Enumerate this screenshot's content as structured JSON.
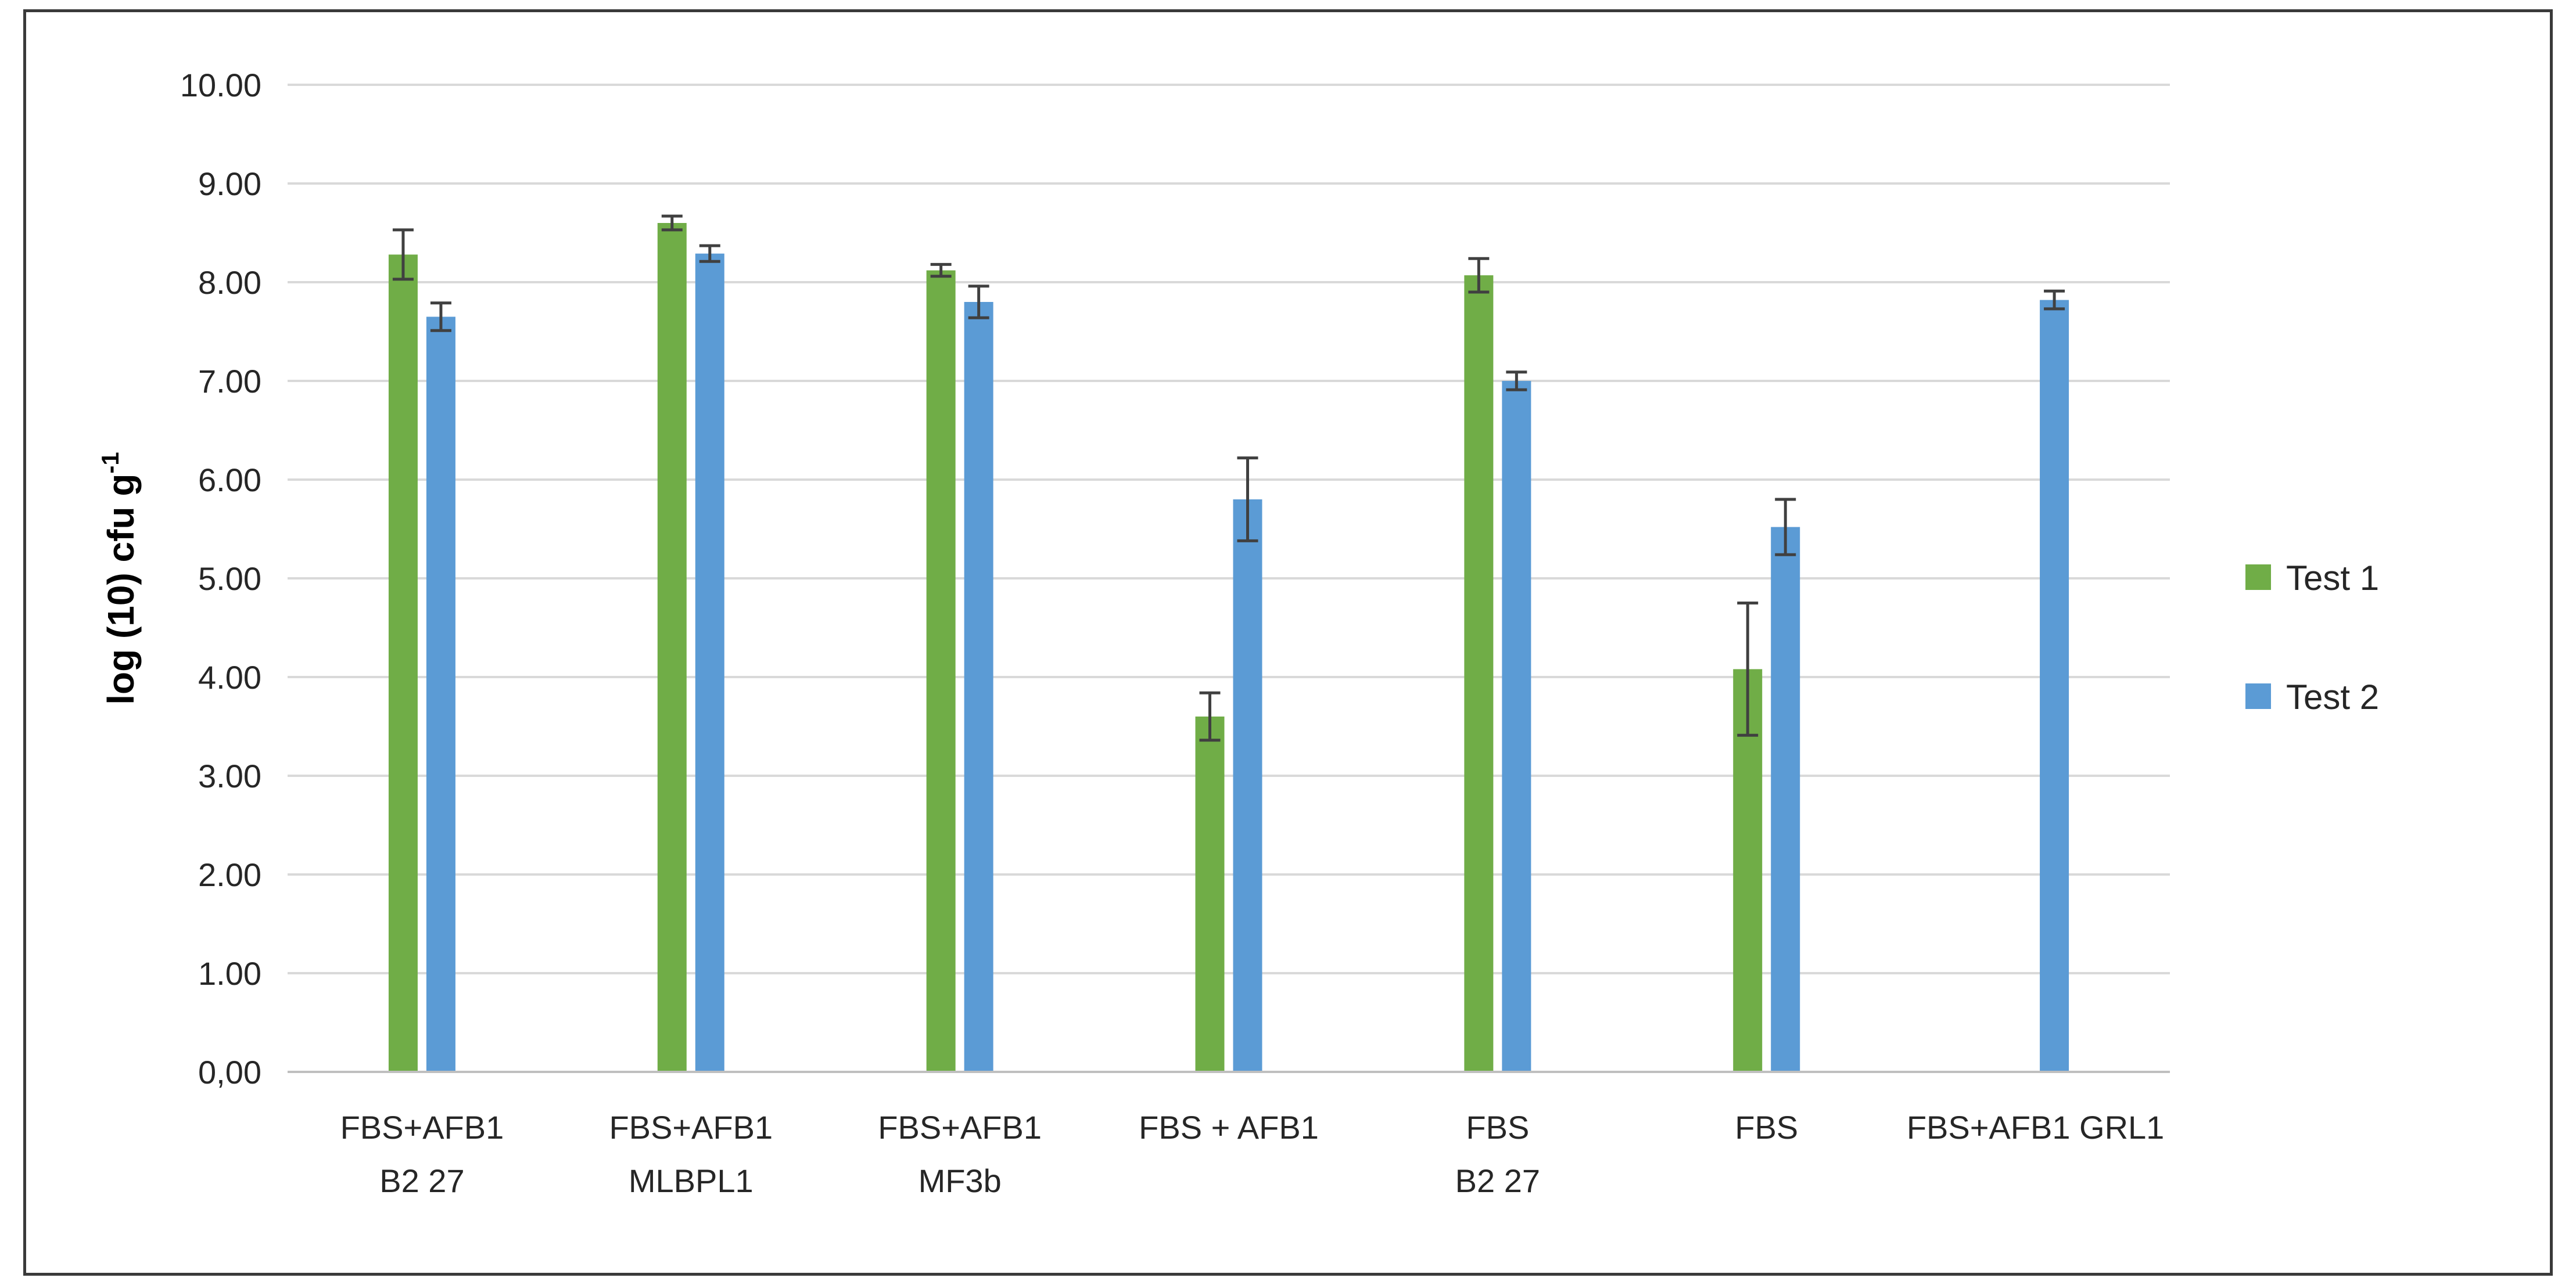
{
  "chart_data": {
    "type": "bar",
    "title": "",
    "xlabel": "",
    "ylabel": {
      "main": "log (10) cfu g",
      "superscript": "-1"
    },
    "ylim": [
      0,
      10
    ],
    "ytick_step": 1,
    "ytick_labels": [
      "0,00",
      "1.00",
      "2.00",
      "3.00",
      "4.00",
      "5.00",
      "6.00",
      "7.00",
      "8.00",
      "9.00",
      "10.00"
    ],
    "grid": true,
    "legend_position": "right",
    "categories": [
      [
        "FBS+AFB1",
        "B2 27"
      ],
      [
        "FBS+AFB1",
        "MLBPL1"
      ],
      [
        "FBS+AFB1",
        "MF3b"
      ],
      [
        "FBS + AFB1"
      ],
      [
        "FBS",
        "B2 27"
      ],
      [
        "FBS"
      ],
      [
        "FBS+AFB1 GRL1"
      ]
    ],
    "series": [
      {
        "name": "Test 1",
        "color": "#70ad47",
        "values": [
          8.28,
          8.6,
          8.12,
          3.6,
          8.07,
          4.08,
          null
        ],
        "errors": [
          0.25,
          0.07,
          0.06,
          0.24,
          0.17,
          0.67,
          null
        ]
      },
      {
        "name": "Test 2",
        "color": "#5b9bd5",
        "values": [
          7.65,
          8.29,
          7.8,
          5.8,
          7.0,
          5.52,
          7.82
        ],
        "errors": [
          0.14,
          0.08,
          0.16,
          0.42,
          0.09,
          0.28,
          0.09
        ]
      }
    ]
  }
}
